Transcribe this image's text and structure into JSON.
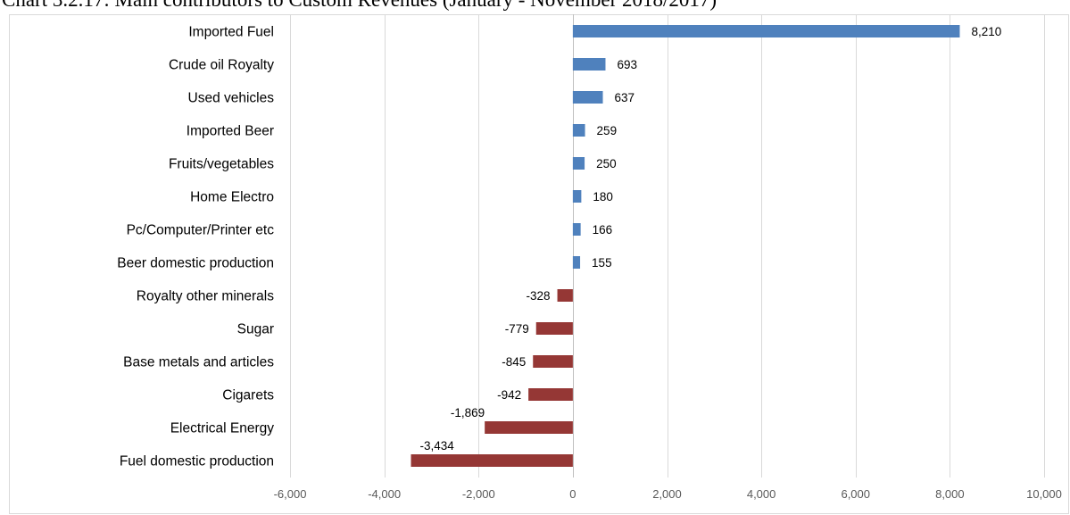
{
  "chart_data": {
    "type": "bar",
    "orientation": "horizontal",
    "title": "Chart 3.2.17: Main contributors to Custom Revenues (January - November 2018/2017)",
    "categories": [
      "Imported Fuel",
      "Crude oil Royalty",
      "Used vehicles",
      "Imported Beer",
      "Fruits/vegetables",
      "Home Electro",
      "Pc/Computer/Printer etc",
      "Beer domestic production",
      "Royalty other minerals",
      "Sugar",
      "Base metals and articles",
      "Cigarets",
      "Electrical Energy",
      "Fuel domestic production"
    ],
    "values": [
      8210,
      693,
      637,
      259,
      250,
      180,
      166,
      155,
      -328,
      -779,
      -845,
      -942,
      -1869,
      -3434
    ],
    "data_labels": [
      "8,210",
      "693",
      "637",
      "259",
      "250",
      "180",
      "166",
      "155",
      "-328",
      "-779",
      "-845",
      "-942",
      "-1,869",
      "-3,434"
    ],
    "xlim": [
      -6000,
      10000
    ],
    "xticks": [
      -6000,
      -4000,
      -2000,
      0,
      2000,
      4000,
      6000,
      8000,
      10000
    ],
    "xtick_labels": [
      "-6,000",
      "-4,000",
      "-2,000",
      "0",
      "2,000",
      "4,000",
      "6,000",
      "8,000",
      "10,000"
    ],
    "xlabel": "",
    "ylabel": "",
    "grid": "vertical",
    "legend": "none",
    "colors": {
      "positive": "#4f81bd",
      "negative": "#953735",
      "grid": "#d9d9d9",
      "axis": "#bfbfbf"
    }
  }
}
